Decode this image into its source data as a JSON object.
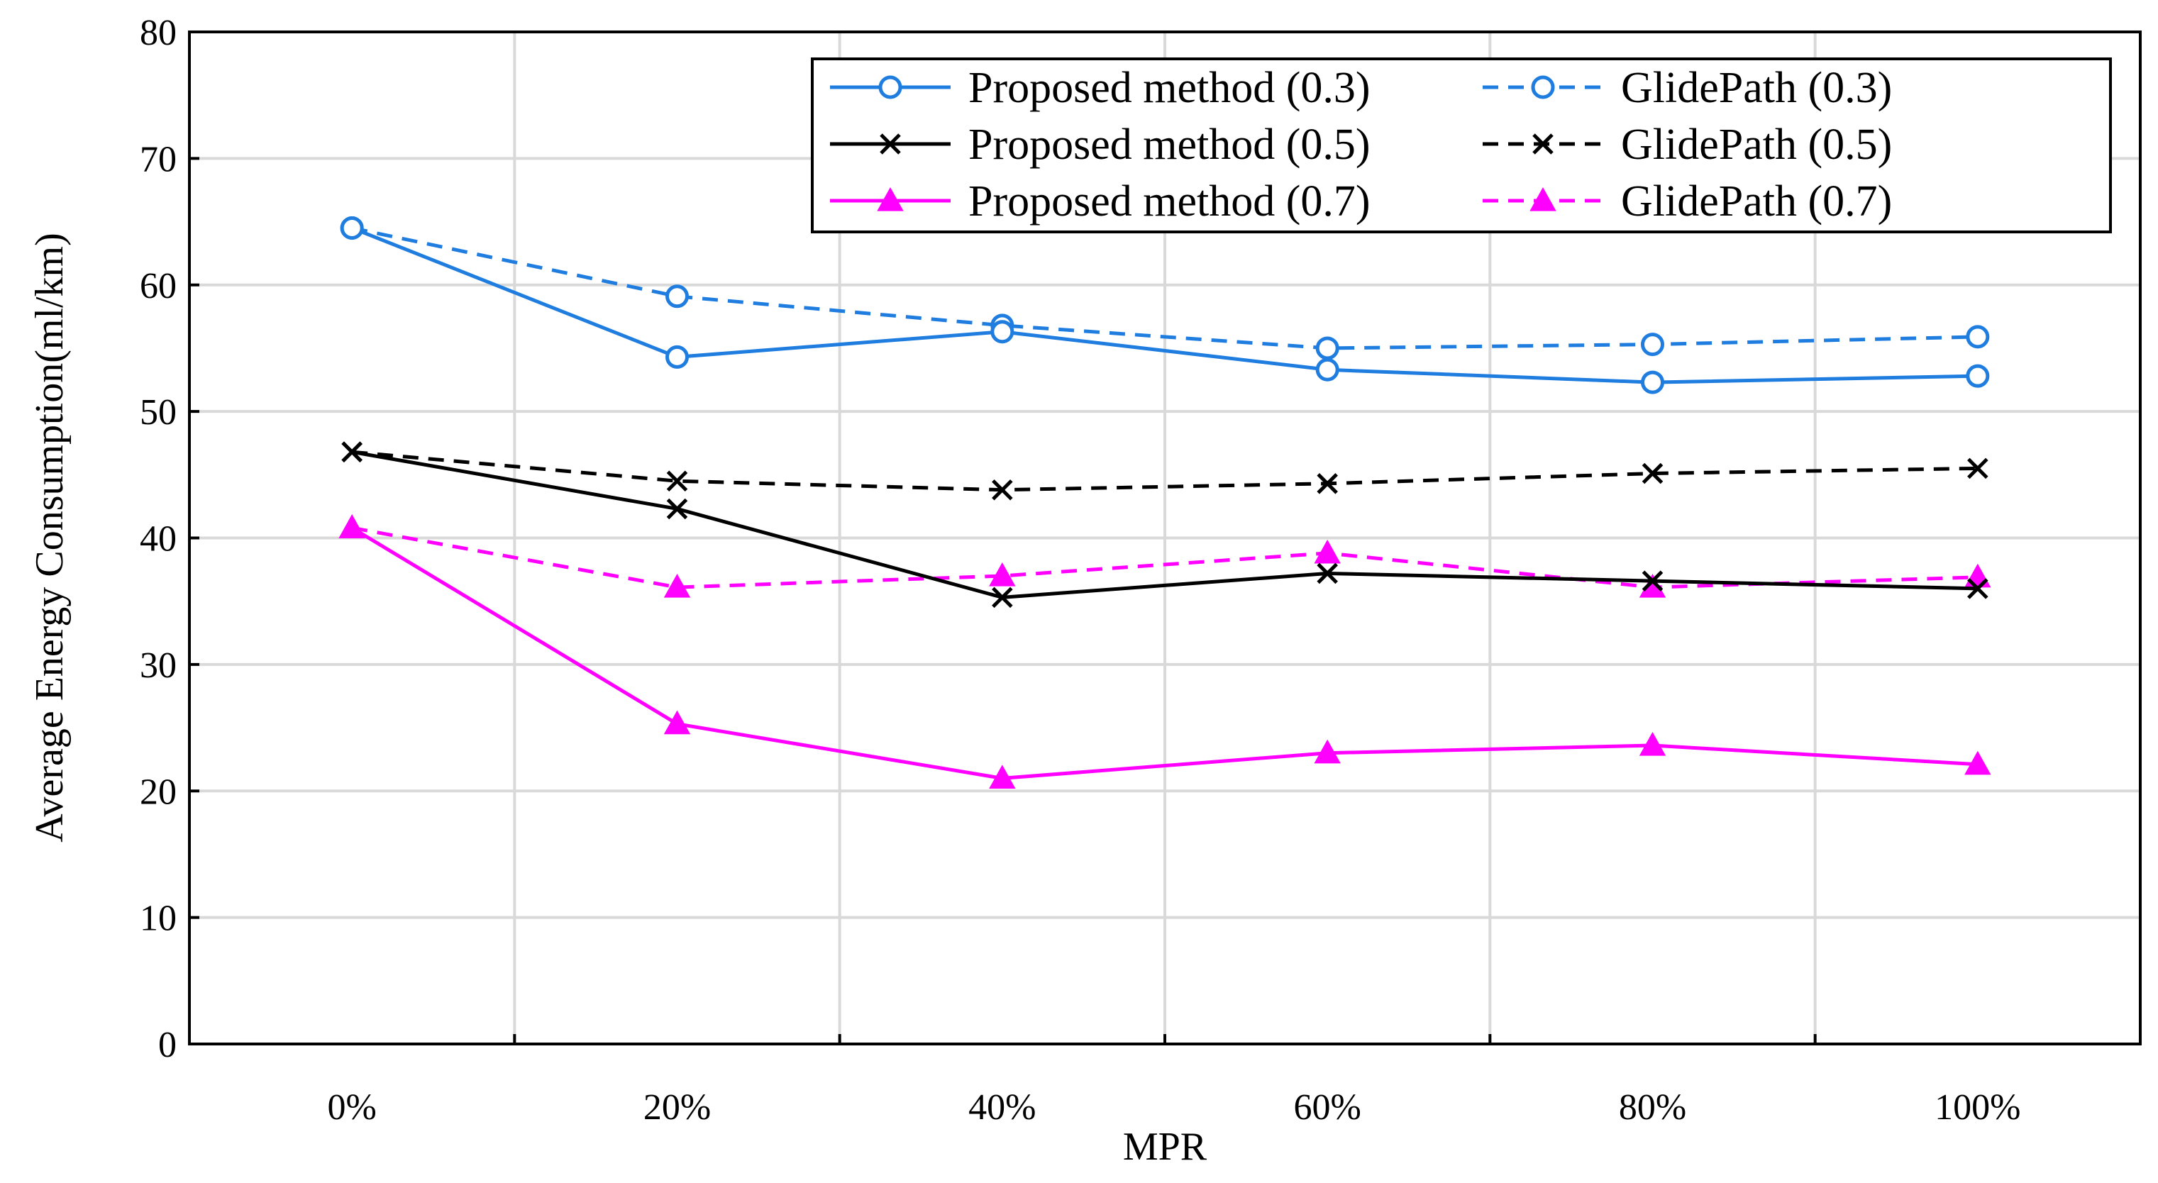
{
  "chart_data": {
    "type": "line",
    "title": "",
    "xlabel": "MPR",
    "ylabel": "Average Energy Consumption(ml/km)",
    "categories": [
      "0%",
      "20%",
      "40%",
      "60%",
      "80%",
      "100%"
    ],
    "ylim": [
      0,
      80
    ],
    "yticks": [
      "0",
      "10",
      "20",
      "30",
      "40",
      "50",
      "60",
      "70",
      "80"
    ],
    "grid": true,
    "legend_position": "top-right",
    "series": [
      {
        "name": "Proposed method (0.3)",
        "color": "#1f7de0",
        "dash": "solid",
        "marker": "circle",
        "values": [
          64.5,
          54.3,
          56.3,
          53.3,
          52.3,
          52.8
        ]
      },
      {
        "name": "GlidePath (0.3)",
        "color": "#1f7de0",
        "dash": "dashed",
        "marker": "circle",
        "values": [
          64.5,
          59.1,
          56.8,
          55.0,
          55.3,
          55.9
        ]
      },
      {
        "name": "Proposed method (0.5)",
        "color": "#000000",
        "dash": "solid",
        "marker": "x",
        "values": [
          46.8,
          42.3,
          35.3,
          37.2,
          36.6,
          36.0
        ]
      },
      {
        "name": "GlidePath (0.5)",
        "color": "#000000",
        "dash": "dashed",
        "marker": "x",
        "values": [
          46.8,
          44.5,
          43.8,
          44.3,
          45.1,
          45.5
        ]
      },
      {
        "name": "Proposed method (0.7)",
        "color": "#ff00ff",
        "dash": "solid",
        "marker": "triangle",
        "values": [
          40.8,
          25.3,
          21.0,
          23.0,
          23.6,
          22.1
        ]
      },
      {
        "name": "GlidePath (0.7)",
        "color": "#ff00ff",
        "dash": "dashed",
        "marker": "triangle",
        "values": [
          40.8,
          36.1,
          37.0,
          38.8,
          36.1,
          36.9
        ]
      }
    ]
  }
}
